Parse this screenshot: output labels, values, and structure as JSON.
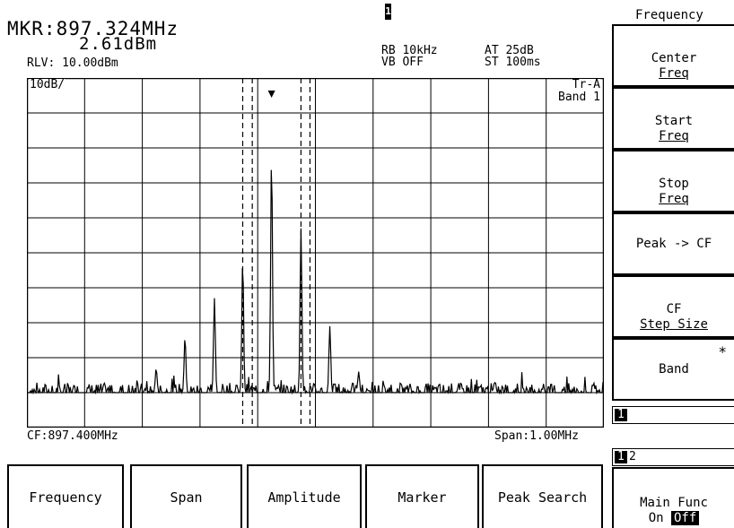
{
  "marker": {
    "freq": "MKR:897.324MHz",
    "level": "2.61dBm",
    "channel": "1"
  },
  "settings": {
    "rlv": "RLV: 10.00dBm",
    "rb": "RB 10kHz",
    "vb": "VB OFF",
    "at": "AT 25dB",
    "st": "ST 100ms"
  },
  "plot": {
    "scale_label": "10dB/",
    "trace_label": "Tr-A",
    "band_label": "Band 1",
    "cf_label": "CF:897.400MHz",
    "span_label": "Span:1.00MHz"
  },
  "menu": {
    "title": "Frequency",
    "center_freq": [
      "Center",
      "Freq"
    ],
    "start_freq": [
      "Start",
      "Freq"
    ],
    "stop_freq": [
      "Stop",
      "Freq"
    ],
    "peak_to_cf": "Peak -> CF",
    "cf_step": [
      "CF",
      "Step Size"
    ],
    "band": "Band",
    "band_mark": "*",
    "page_ind_1": "1",
    "page_ind_2a": "1",
    "page_ind_2b": "2",
    "main_func": "Main Func",
    "main_on": "On",
    "main_off": "Off"
  },
  "bottom_menu": {
    "frequency": "Frequency",
    "span": "Span",
    "amplitude": "Amplitude",
    "marker": "Marker",
    "peak_search": "Peak Search"
  },
  "chart_data": {
    "type": "line",
    "x_unit": "MHz",
    "xlim": [
      896.9,
      897.9
    ],
    "y_divisions": 10,
    "marker_x": 897.324,
    "peaks": [
      {
        "x": 897.274,
        "y": 4.8
      },
      {
        "x": 897.324,
        "y": 7.8
      },
      {
        "x": 897.375,
        "y": 5.7
      },
      {
        "x": 897.225,
        "y": 3.7
      },
      {
        "x": 897.174,
        "y": 2.6
      },
      {
        "x": 897.124,
        "y": 1.7
      },
      {
        "x": 897.425,
        "y": 2.9
      },
      {
        "x": 897.475,
        "y": 1.6
      },
      {
        "x": 897.074,
        "y": 0.9
      },
      {
        "x": 897.025,
        "y": 0.6
      }
    ],
    "noise_floor_div": 1.0
  }
}
